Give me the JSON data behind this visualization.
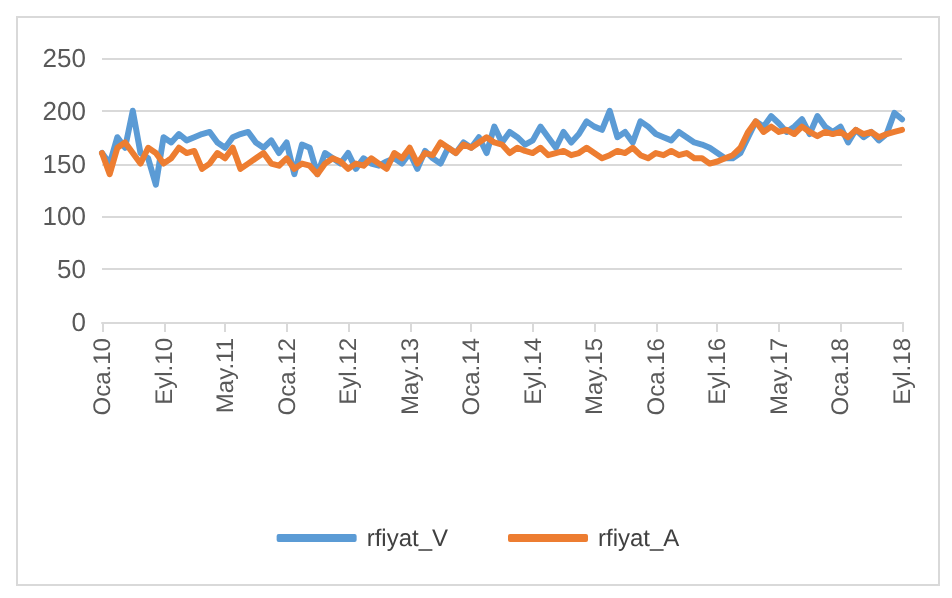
{
  "chart_data": {
    "type": "line",
    "categories": [
      "Oca.10",
      null,
      null,
      null,
      null,
      null,
      null,
      null,
      "Eyl.10",
      null,
      null,
      null,
      null,
      null,
      null,
      null,
      "May.11",
      null,
      null,
      null,
      null,
      null,
      null,
      null,
      "Oca.12",
      null,
      null,
      null,
      null,
      null,
      null,
      null,
      "Eyl.12",
      null,
      null,
      null,
      null,
      null,
      null,
      null,
      "May.13",
      null,
      null,
      null,
      null,
      null,
      null,
      null,
      "Oca.14",
      null,
      null,
      null,
      null,
      null,
      null,
      null,
      "Eyl.14",
      null,
      null,
      null,
      null,
      null,
      null,
      null,
      "May.15",
      null,
      null,
      null,
      null,
      null,
      null,
      null,
      "Oca.16",
      null,
      null,
      null,
      null,
      null,
      null,
      null,
      "Eyl.16",
      null,
      null,
      null,
      null,
      null,
      null,
      null,
      "May.17",
      null,
      null,
      null,
      null,
      null,
      null,
      null,
      "Oca.18",
      null,
      null,
      null,
      null,
      null,
      null,
      null,
      "Eyl.18"
    ],
    "series": [
      {
        "name": "rfiyat_V",
        "color": "#5b9bd5",
        "values": [
          160,
          150,
          175,
          165,
          200,
          160,
          155,
          130,
          175,
          170,
          178,
          172,
          175,
          178,
          180,
          170,
          165,
          175,
          178,
          180,
          170,
          165,
          172,
          160,
          170,
          140,
          168,
          165,
          140,
          160,
          155,
          150,
          160,
          145,
          155,
          150,
          148,
          152,
          155,
          150,
          160,
          145,
          162,
          155,
          150,
          165,
          160,
          170,
          165,
          175,
          160,
          185,
          170,
          180,
          175,
          168,
          172,
          185,
          175,
          165,
          180,
          170,
          178,
          190,
          185,
          182,
          200,
          175,
          180,
          170,
          190,
          185,
          178,
          175,
          172,
          180,
          175,
          170,
          168,
          165,
          160,
          155,
          155,
          160,
          175,
          190,
          185,
          195,
          188,
          180,
          185,
          192,
          178,
          195,
          185,
          180,
          185,
          170,
          182,
          175,
          180,
          172,
          178,
          198,
          192
        ]
      },
      {
        "name": "rfiyat_A",
        "color": "#ed7d31",
        "values": [
          160,
          140,
          165,
          170,
          160,
          150,
          165,
          160,
          150,
          155,
          165,
          160,
          162,
          145,
          150,
          160,
          155,
          165,
          145,
          150,
          155,
          160,
          150,
          148,
          155,
          145,
          150,
          148,
          140,
          150,
          155,
          152,
          145,
          150,
          148,
          155,
          150,
          145,
          160,
          155,
          165,
          150,
          160,
          158,
          170,
          165,
          160,
          168,
          165,
          170,
          175,
          170,
          168,
          160,
          165,
          162,
          160,
          165,
          158,
          160,
          162,
          158,
          160,
          165,
          160,
          155,
          158,
          162,
          160,
          165,
          158,
          155,
          160,
          158,
          162,
          158,
          160,
          155,
          155,
          150,
          152,
          155,
          158,
          165,
          180,
          190,
          180,
          185,
          180,
          182,
          178,
          185,
          180,
          176,
          180,
          178,
          180,
          175,
          182,
          178,
          180,
          175,
          178,
          180,
          182
        ]
      }
    ],
    "ylim": [
      0,
      250
    ],
    "yticks": [
      0,
      50,
      100,
      150,
      200,
      250
    ],
    "grid": "y",
    "legend": "bottom"
  }
}
